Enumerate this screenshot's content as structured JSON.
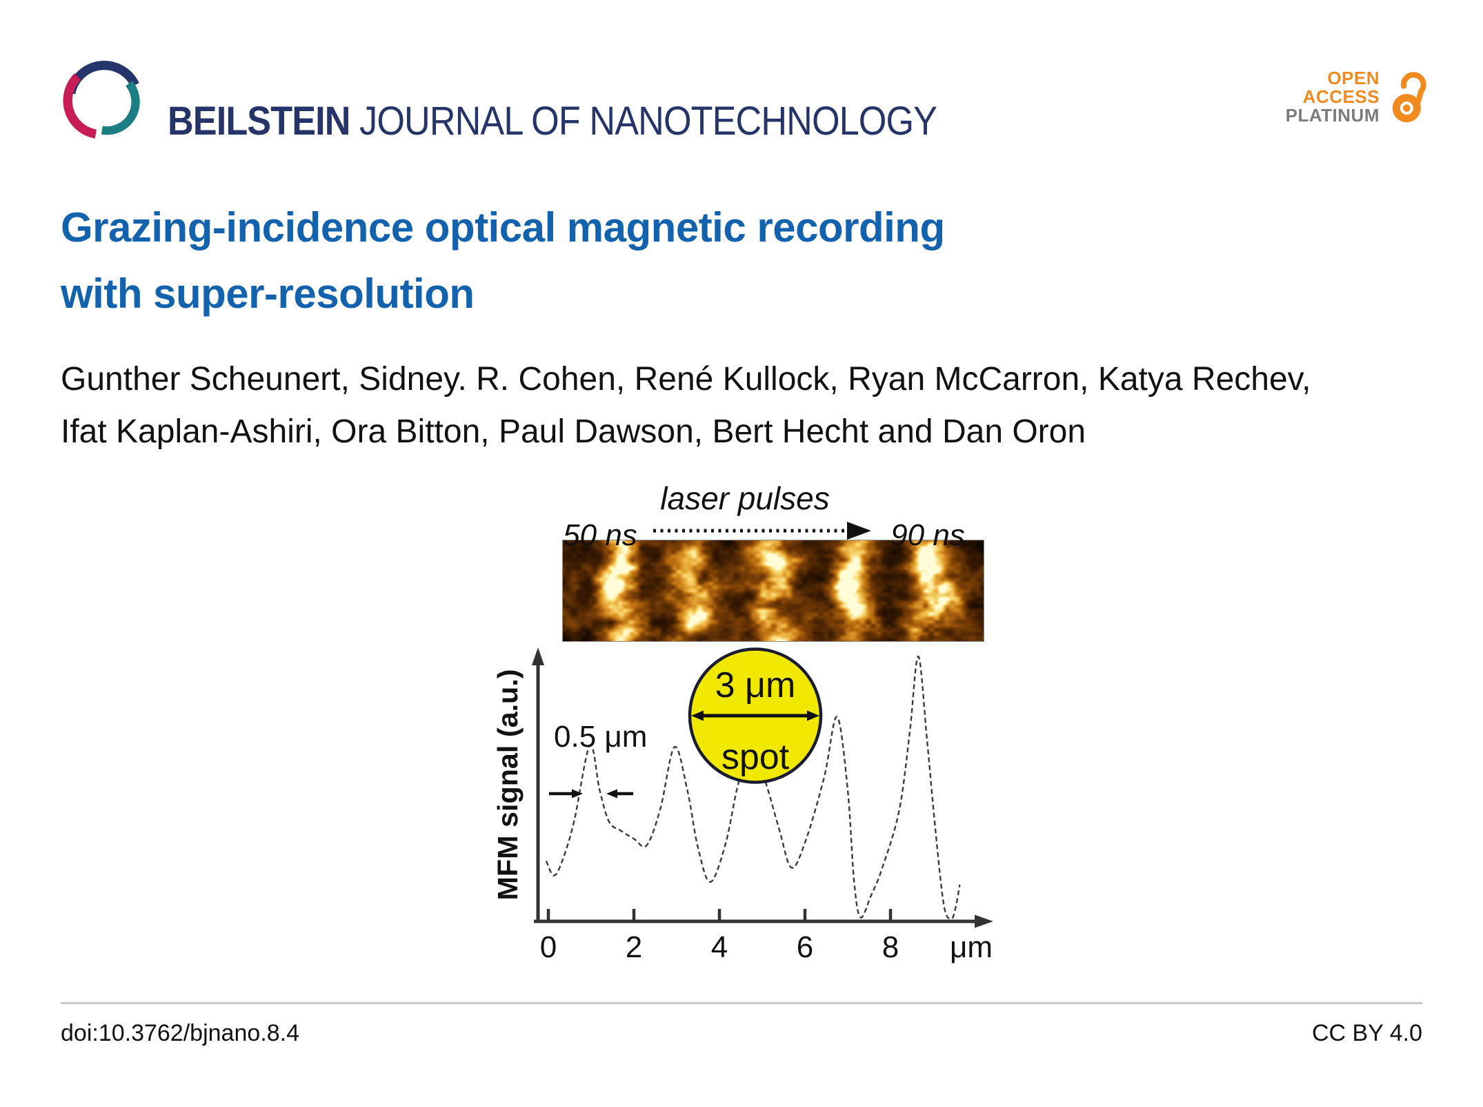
{
  "header": {
    "journal_bold": "BEILSTEIN",
    "journal_rest": " JOURNAL OF NANOTECHNOLOGY",
    "journal_color": "#253469",
    "logo_colors": {
      "navy": "#26356B",
      "teal": "#1B7E83",
      "crimson": "#C81E57"
    },
    "open_access": {
      "line1": "OPEN",
      "line2": "ACCESS",
      "line3": "PLATINUM",
      "orange": "#F18A1F",
      "gray": "#7C7C7C"
    }
  },
  "article": {
    "title_line1": "Grazing-incidence optical magnetic recording",
    "title_line2": "with super-resolution",
    "title_color": "#1262AE",
    "authors_line1": "Gunther Scheunert, Sidney. R. Cohen, René Kullock, Ryan McCarron, Katya Rechev,",
    "authors_line2": "Ifat Kaplan-Ashiri, Ora Bitton, Paul Dawson, Bert Hecht and Dan Oron"
  },
  "figure": {
    "top_label": "laser pulses",
    "left_time": "50 ns",
    "right_time": "90 ns",
    "mfm_strip": {
      "description": "MFM contrast image strip with five bright written magnetic marks on dark gold noise",
      "bright_marks": 5,
      "mark_positions": [
        0.13,
        0.31,
        0.5,
        0.685,
        0.875
      ],
      "mark_intensities": [
        0.82,
        0.62,
        0.72,
        0.78,
        0.95
      ],
      "palette": [
        [
          0.0,
          "#080300"
        ],
        [
          0.25,
          "#3c1c02"
        ],
        [
          0.45,
          "#7a3f06"
        ],
        [
          0.62,
          "#c07312"
        ],
        [
          0.78,
          "#ecb03d"
        ],
        [
          0.9,
          "#fae182"
        ],
        [
          1.0,
          "#fffcd7"
        ]
      ]
    },
    "spot_fill": "#F1E800",
    "spot_stroke": "#1c1c30"
  },
  "chart_data": {
    "type": "line",
    "title": "",
    "xlabel": "μm",
    "ylabel": "MFM signal (a.u.)",
    "xticks": [
      0,
      2,
      4,
      6,
      8
    ],
    "xlim": [
      0,
      9.9
    ],
    "ylim": [
      0,
      1.05
    ],
    "grid": false,
    "legend": "none",
    "series": [
      {
        "name": "MFM line profile",
        "style": "dashed thin dark line",
        "points": [
          [
            -0.05,
            0.23
          ],
          [
            0.12,
            0.175
          ],
          [
            0.3,
            0.22
          ],
          [
            0.6,
            0.38
          ],
          [
            0.97,
            0.67
          ],
          [
            1.2,
            0.5
          ],
          [
            1.42,
            0.38
          ],
          [
            1.7,
            0.345
          ],
          [
            2.0,
            0.315
          ],
          [
            2.3,
            0.29
          ],
          [
            2.62,
            0.43
          ],
          [
            2.95,
            0.665
          ],
          [
            3.25,
            0.5
          ],
          [
            3.5,
            0.28
          ],
          [
            3.79,
            0.15
          ],
          [
            4.15,
            0.3
          ],
          [
            4.45,
            0.53
          ],
          [
            4.8,
            0.665
          ],
          [
            5.1,
            0.52
          ],
          [
            5.4,
            0.35
          ],
          [
            5.68,
            0.205
          ],
          [
            6.0,
            0.3
          ],
          [
            6.45,
            0.55
          ],
          [
            6.75,
            0.78
          ],
          [
            7.0,
            0.5
          ],
          [
            7.15,
            0.15
          ],
          [
            7.3,
            0.015
          ],
          [
            7.55,
            0.1
          ],
          [
            7.8,
            0.2
          ],
          [
            8.2,
            0.42
          ],
          [
            8.45,
            0.72
          ],
          [
            8.65,
            1.01
          ],
          [
            8.85,
            0.7
          ],
          [
            9.05,
            0.35
          ],
          [
            9.25,
            0.06
          ],
          [
            9.42,
            0.01
          ],
          [
            9.52,
            0.05
          ],
          [
            9.62,
            0.14
          ]
        ]
      }
    ],
    "annotations": {
      "peak_width": "0.5 μm",
      "spot_diameter": "3 μm",
      "spot_word": "spot",
      "spot_circle_span_um": [
        3.3,
        6.3
      ]
    }
  },
  "footer": {
    "doi": "doi:10.3762/bjnano.8.4",
    "license": "CC BY 4.0"
  }
}
